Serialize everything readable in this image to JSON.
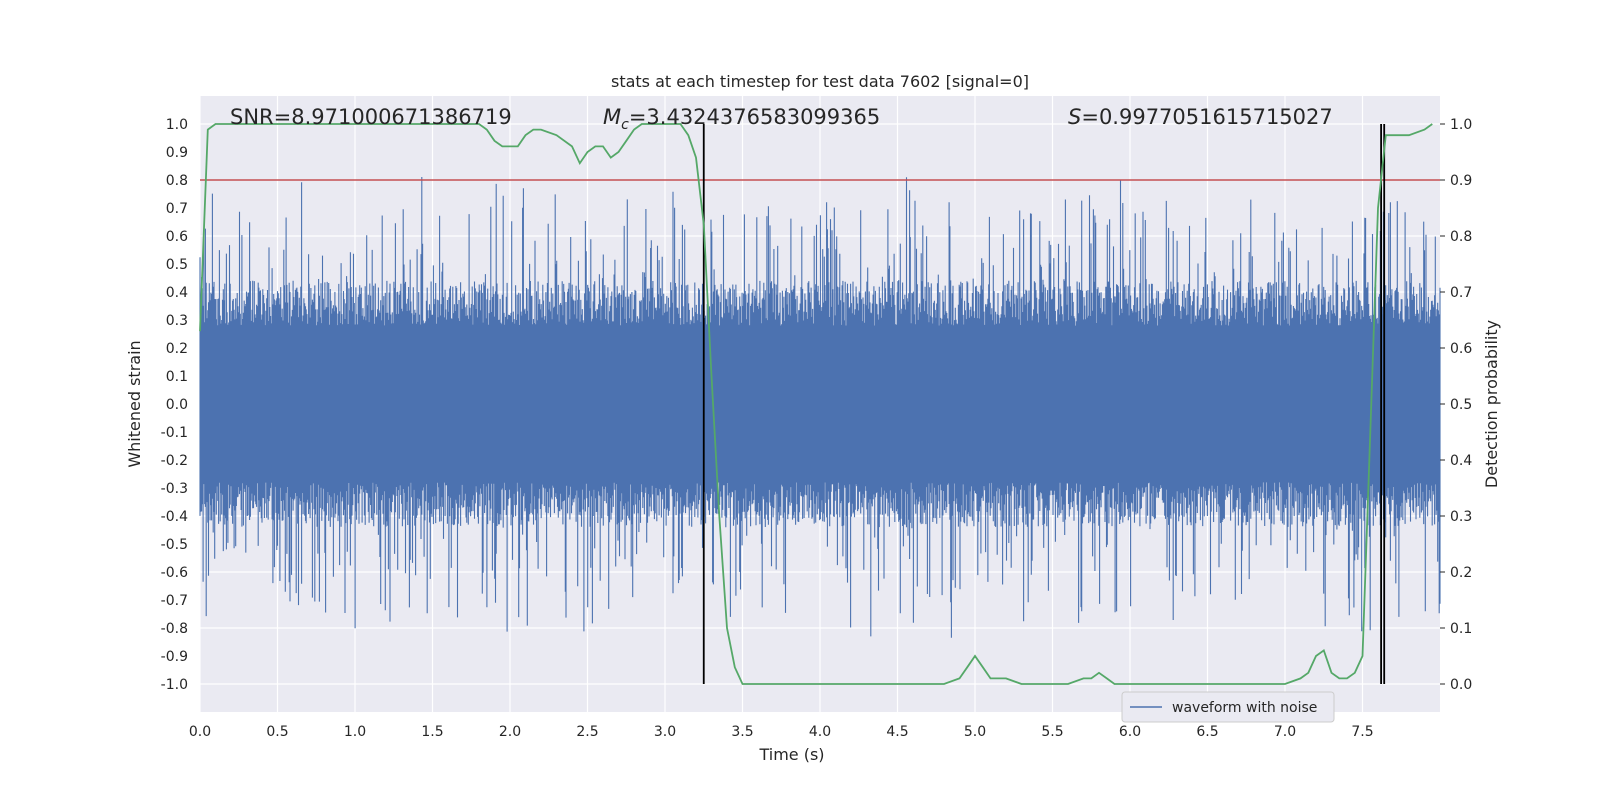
{
  "chart_data": {
    "type": "line",
    "title": "stats at each timestep for test data 7602 [signal=0]",
    "xlabel": "Time (s)",
    "ylabel": "Whitened strain",
    "ylabel_right": "Detection probability",
    "xlim": [
      0.0,
      8.0
    ],
    "ylim": [
      -1.1,
      1.1
    ],
    "ylim_right": [
      -0.05,
      1.05
    ],
    "x_ticks": [
      "0.0",
      "0.5",
      "1.0",
      "1.5",
      "2.0",
      "2.5",
      "3.0",
      "3.5",
      "4.0",
      "4.5",
      "5.0",
      "5.5",
      "6.0",
      "6.5",
      "7.0",
      "7.5"
    ],
    "y_ticks": [
      "1.0",
      "0.9",
      "0.8",
      "0.7",
      "0.6",
      "0.5",
      "0.4",
      "0.3",
      "0.2",
      "0.1",
      "0.0",
      "-0.1",
      "-0.2",
      "-0.3",
      "-0.4",
      "-0.5",
      "-0.6",
      "-0.7",
      "-0.8",
      "-0.9",
      "-1.0"
    ],
    "y_ticks_right": [
      "1.0",
      "0.9",
      "0.8",
      "0.7",
      "0.6",
      "0.5",
      "0.4",
      "0.3",
      "0.2",
      "0.1",
      "0.0"
    ],
    "grid": true,
    "legend_position": "lower-right",
    "annotations": {
      "snr": "SNR=8.971000671386719",
      "mc_symbol": "M",
      "mc_sub": "c",
      "mc_value": "=3.4324376583099365",
      "s_symbol": "S",
      "s_value": "=0.9977051615715027"
    },
    "series": [
      {
        "name": "waveform with noise",
        "color": "#4c72b0",
        "style": "dense noise, approx. bounded in [-1.0, 1.0]"
      },
      {
        "color": "#55a868",
        "axis": "right",
        "x": [
          0.0,
          0.05,
          0.1,
          0.2,
          0.4,
          0.6,
          0.8,
          1.0,
          1.2,
          1.4,
          1.6,
          1.8,
          1.85,
          1.9,
          1.95,
          2.0,
          2.05,
          2.1,
          2.15,
          2.2,
          2.3,
          2.4,
          2.45,
          2.5,
          2.55,
          2.6,
          2.65,
          2.7,
          2.75,
          2.8,
          2.85,
          2.9,
          3.0,
          3.1,
          3.15,
          3.2,
          3.25,
          3.3,
          3.35,
          3.4,
          3.45,
          3.5,
          3.6,
          3.8,
          4.0,
          4.2,
          4.4,
          4.6,
          4.7,
          4.8,
          4.9,
          4.95,
          5.0,
          5.05,
          5.1,
          5.2,
          5.3,
          5.4,
          5.6,
          5.7,
          5.75,
          5.8,
          5.85,
          5.9,
          5.95,
          6.0,
          6.3,
          6.5,
          7.0,
          7.1,
          7.15,
          7.2,
          7.25,
          7.3,
          7.35,
          7.4,
          7.45,
          7.5,
          7.55,
          7.6,
          7.65,
          7.7,
          7.8,
          7.9,
          7.95
        ],
        "y": [
          0.63,
          0.99,
          1.0,
          1.0,
          1.0,
          1.0,
          1.0,
          1.0,
          1.0,
          1.0,
          1.0,
          1.0,
          0.99,
          0.97,
          0.96,
          0.96,
          0.96,
          0.98,
          0.99,
          0.99,
          0.98,
          0.96,
          0.93,
          0.95,
          0.96,
          0.96,
          0.94,
          0.95,
          0.97,
          0.99,
          1.0,
          1.0,
          1.0,
          1.0,
          0.98,
          0.94,
          0.82,
          0.55,
          0.3,
          0.1,
          0.03,
          0.0,
          0.0,
          0.0,
          0.0,
          0.0,
          0.0,
          0.0,
          0.0,
          0.0,
          0.01,
          0.03,
          0.05,
          0.03,
          0.01,
          0.01,
          0.0,
          0.0,
          0.0,
          0.01,
          0.01,
          0.02,
          0.01,
          0.0,
          0.0,
          0.0,
          0.0,
          0.0,
          0.0,
          0.01,
          0.02,
          0.05,
          0.06,
          0.02,
          0.01,
          0.01,
          0.02,
          0.05,
          0.45,
          0.85,
          0.98,
          0.98,
          0.98,
          0.99,
          1.0
        ]
      }
    ],
    "threshold": {
      "value": 0.9,
      "axis": "right",
      "color": "#c44e52"
    },
    "vertical_lines": [
      3.25,
      7.62,
      7.64
    ],
    "vertical_line_color": "#000000"
  }
}
